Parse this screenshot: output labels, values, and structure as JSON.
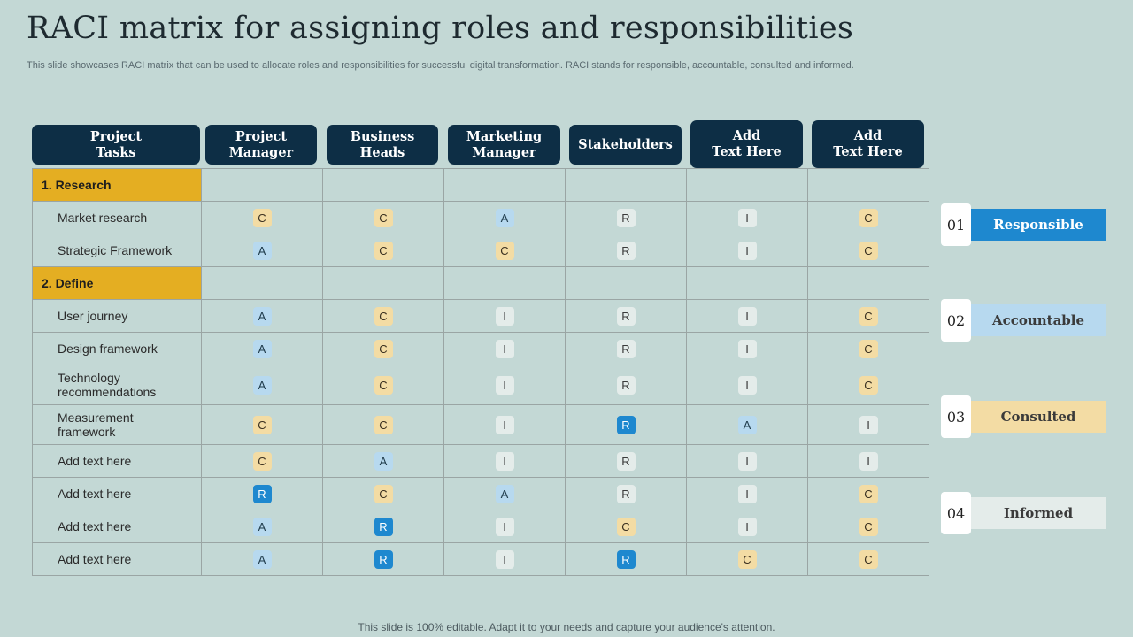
{
  "slide": {
    "title": "RACI matrix for assigning roles and responsibilities",
    "subtitle": "This slide showcases RACI matrix that can be used to allocate roles and responsibilities for successful digital transformation. RACI stands for responsible, accountable, consulted and informed.",
    "footer": "This slide is 100% editable. Adapt it to your needs and capture your audience's attention."
  },
  "headers": [
    "Project\nTasks",
    "Project\nManager",
    "Business\nHeads",
    "Marketing\nManager",
    "Stakeholders",
    "Add\nText Here",
    "Add\nText Here"
  ],
  "sections": [
    {
      "label": "1. Research",
      "rows": [
        {
          "task": "Market research",
          "roles": [
            "C",
            "C",
            "A",
            "R",
            "I",
            "C"
          ]
        },
        {
          "task": "Strategic Framework",
          "roles": [
            "A",
            "C",
            "C",
            "R",
            "I",
            "C"
          ]
        }
      ]
    },
    {
      "label": "2. Define",
      "rows": [
        {
          "task": "User journey",
          "roles": [
            "A",
            "C",
            "I",
            "R",
            "I",
            "C"
          ]
        },
        {
          "task": "Design framework",
          "roles": [
            "A",
            "C",
            "I",
            "R",
            "I",
            "C"
          ]
        },
        {
          "task": "Technology recommendations",
          "roles": [
            "A",
            "C",
            "I",
            "R",
            "I",
            "C"
          ]
        },
        {
          "task": "Measurement framework",
          "roles": [
            "C",
            "C",
            "I",
            "R",
            "A",
            "I"
          ]
        },
        {
          "task": "Add text here",
          "roles": [
            "C",
            "A",
            "I",
            "R",
            "I",
            "I"
          ]
        },
        {
          "task": "Add text here",
          "roles": [
            "R",
            "C",
            "A",
            "R",
            "I",
            "C"
          ]
        },
        {
          "task": "Add text here",
          "roles": [
            "A",
            "R",
            "I",
            "C",
            "I",
            "C"
          ]
        },
        {
          "task": "Add text here",
          "roles": [
            "A",
            "R",
            "I",
            "R",
            "C",
            "C"
          ]
        }
      ]
    }
  ],
  "strong_marks": [
    {
      "row": 5,
      "col": 3
    },
    {
      "row": 7,
      "col": 0
    },
    {
      "row": 8,
      "col": 1
    },
    {
      "row": 9,
      "col": 1
    },
    {
      "row": 9,
      "col": 3
    }
  ],
  "legend": [
    {
      "num": "01",
      "label": "Responsible",
      "bg": "#1e88cf",
      "fg": "#ffffff"
    },
    {
      "num": "02",
      "label": "Accountable",
      "bg": "#b7d9ef",
      "fg": "#3a3a3a"
    },
    {
      "num": "03",
      "label": "Consulted",
      "bg": "#f3dca4",
      "fg": "#3a3a3a"
    },
    {
      "num": "04",
      "label": "Informed",
      "bg": "#e4ecea",
      "fg": "#3a3a3a"
    }
  ],
  "colors": {
    "header_bg": "#0d2e45",
    "section_bg": "#e4ae22",
    "page_bg": "#c3d8d5"
  }
}
